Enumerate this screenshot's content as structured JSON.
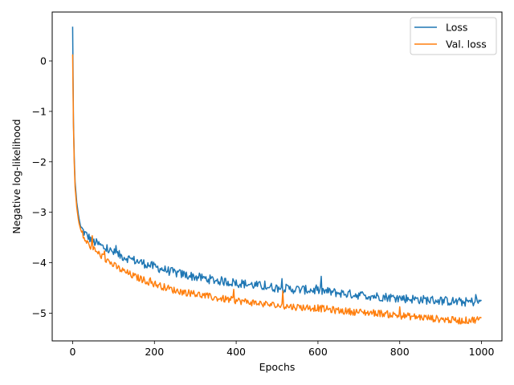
{
  "chart_data": {
    "type": "line",
    "title": "",
    "xlabel": "Epochs",
    "ylabel": "Negative log-likelihood",
    "xlim": [
      -50,
      1050
    ],
    "ylim": [
      -5.55,
      0.97
    ],
    "xticks": [
      0,
      200,
      400,
      600,
      800,
      1000
    ],
    "xtick_labels": [
      "0",
      "200",
      "400",
      "600",
      "800",
      "1000"
    ],
    "yticks": [
      0,
      -1,
      -2,
      -3,
      -4,
      -5
    ],
    "ytick_labels": [
      "0",
      "−1",
      "−2",
      "−3",
      "−4",
      "−5"
    ],
    "grid": false,
    "legend_position": "top-right",
    "series": [
      {
        "name": "Loss",
        "color": "#1f77b4",
        "x": [
          0,
          2,
          5,
          10,
          15,
          20,
          30,
          40,
          50,
          60,
          80,
          100,
          120,
          150,
          200,
          250,
          300,
          350,
          400,
          450,
          500,
          550,
          600,
          650,
          700,
          750,
          800,
          850,
          900,
          950,
          1000
        ],
        "y": [
          0.68,
          -1.2,
          -2.3,
          -2.8,
          -3.1,
          -3.3,
          -3.42,
          -3.5,
          -3.58,
          -3.62,
          -3.72,
          -3.8,
          -3.87,
          -3.95,
          -4.08,
          -4.2,
          -4.28,
          -4.35,
          -4.4,
          -4.45,
          -4.5,
          -4.53,
          -4.55,
          -4.6,
          -4.64,
          -4.67,
          -4.7,
          -4.73,
          -4.75,
          -4.78,
          -4.77
        ]
      },
      {
        "name": "Val. loss",
        "color": "#ff7f0e",
        "x": [
          0,
          2,
          5,
          10,
          15,
          20,
          30,
          40,
          50,
          60,
          80,
          100,
          120,
          150,
          200,
          250,
          300,
          350,
          400,
          450,
          500,
          550,
          600,
          650,
          700,
          750,
          800,
          850,
          900,
          950,
          1000
        ],
        "y": [
          0.13,
          -1.3,
          -2.4,
          -2.9,
          -3.2,
          -3.35,
          -3.55,
          -3.65,
          -3.72,
          -3.8,
          -3.92,
          -4.05,
          -4.15,
          -4.27,
          -4.42,
          -4.55,
          -4.62,
          -4.7,
          -4.75,
          -4.8,
          -4.85,
          -4.88,
          -4.9,
          -4.95,
          -4.98,
          -5.0,
          -5.05,
          -5.08,
          -5.12,
          -5.15,
          -5.12
        ]
      }
    ]
  }
}
